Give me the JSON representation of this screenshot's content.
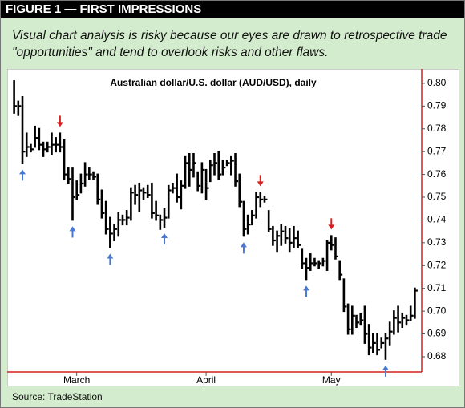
{
  "header": {
    "title": "FIGURE 1 — FIRST IMPRESSIONS"
  },
  "caption": "Visual chart analysis is risky because our eyes are drawn to retrospective trade \"opportunities\" and tend to overlook risks and other flaws.",
  "source": "Source: TradeStation",
  "chart_data": {
    "type": "ohlc",
    "title": "Australian dollar/U.S. dollar (AUD/USD), daily",
    "categories": [
      null,
      null,
      null,
      null,
      null,
      null,
      null,
      null,
      null,
      null,
      null,
      null,
      null,
      null,
      null,
      "March",
      null,
      null,
      null,
      null,
      null,
      null,
      null,
      null,
      null,
      null,
      null,
      null,
      null,
      null,
      null,
      null,
      null,
      null,
      null,
      null,
      null,
      null,
      null,
      null,
      null,
      null,
      null,
      null,
      null,
      null,
      "April",
      null,
      null,
      null,
      null,
      null,
      null,
      null,
      null,
      null,
      null,
      null,
      null,
      null,
      null,
      null,
      null,
      null,
      null,
      null,
      null,
      null,
      null,
      null,
      null,
      null,
      null,
      null,
      null,
      null,
      "May",
      null,
      null,
      null,
      null,
      null,
      null,
      null,
      null,
      null,
      null,
      null,
      null,
      null,
      null,
      null,
      null,
      null,
      null,
      null,
      null
    ],
    "high": [
      0.801,
      0.792,
      0.794,
      0.778,
      0.773,
      0.781,
      0.78,
      0.774,
      0.774,
      0.778,
      0.776,
      0.778,
      0.775,
      0.763,
      0.763,
      0.757,
      0.76,
      0.765,
      0.763,
      0.761,
      0.76,
      0.753,
      0.748,
      0.741,
      0.738,
      0.743,
      0.742,
      0.744,
      0.754,
      0.755,
      0.756,
      0.754,
      0.755,
      0.756,
      0.748,
      0.742,
      0.745,
      0.755,
      0.756,
      0.76,
      0.757,
      0.768,
      0.769,
      0.769,
      0.761,
      0.765,
      0.762,
      0.766,
      0.769,
      0.77,
      0.766,
      0.766,
      0.768,
      0.769,
      0.76,
      0.748,
      0.742,
      0.744,
      0.752,
      0.752,
      0.75,
      0.744,
      0.737,
      0.735,
      0.738,
      0.737,
      0.736,
      0.737,
      0.735,
      0.727,
      0.723,
      0.725,
      0.723,
      0.722,
      0.723,
      0.731,
      0.733,
      0.732,
      0.722,
      0.714,
      0.703,
      0.702,
      0.698,
      0.699,
      0.702,
      0.694,
      0.69,
      0.69,
      0.688,
      0.69,
      0.695,
      0.7,
      0.702,
      0.699,
      0.698,
      0.702,
      0.71
    ],
    "low": [
      0.787,
      0.786,
      0.765,
      0.768,
      0.77,
      0.772,
      0.771,
      0.768,
      0.77,
      0.769,
      0.77,
      0.77,
      0.758,
      0.756,
      0.74,
      0.749,
      0.752,
      0.755,
      0.758,
      0.758,
      0.747,
      0.741,
      0.734,
      0.728,
      0.731,
      0.733,
      0.738,
      0.738,
      0.74,
      0.747,
      0.744,
      0.749,
      0.75,
      0.741,
      0.74,
      0.736,
      0.737,
      0.741,
      0.752,
      0.748,
      0.745,
      0.754,
      0.755,
      0.759,
      0.753,
      0.752,
      0.749,
      0.757,
      0.76,
      0.758,
      0.76,
      0.764,
      0.76,
      0.755,
      0.746,
      0.733,
      0.734,
      0.738,
      0.741,
      0.746,
      0.748,
      0.735,
      0.729,
      0.726,
      0.729,
      0.73,
      0.726,
      0.728,
      0.728,
      0.719,
      0.714,
      0.718,
      0.72,
      0.719,
      0.72,
      0.718,
      0.727,
      0.723,
      0.714,
      0.7,
      0.69,
      0.69,
      0.693,
      0.694,
      0.686,
      0.681,
      0.682,
      0.681,
      0.684,
      0.679,
      0.685,
      0.69,
      0.691,
      0.693,
      0.694,
      0.696,
      0.697
    ],
    "close": [
      0.79,
      0.79,
      0.77,
      0.772,
      0.771,
      0.776,
      0.773,
      0.771,
      0.772,
      0.773,
      0.773,
      0.772,
      0.76,
      0.758,
      0.75,
      0.751,
      0.756,
      0.76,
      0.76,
      0.759,
      0.749,
      0.743,
      0.736,
      0.734,
      0.736,
      0.74,
      0.74,
      0.741,
      0.752,
      0.751,
      0.753,
      0.752,
      0.751,
      0.743,
      0.742,
      0.74,
      0.741,
      0.753,
      0.754,
      0.75,
      0.755,
      0.765,
      0.762,
      0.765,
      0.755,
      0.762,
      0.754,
      0.764,
      0.765,
      0.76,
      0.763,
      0.765,
      0.766,
      0.757,
      0.748,
      0.736,
      0.738,
      0.742,
      0.75,
      0.749,
      0.749,
      0.736,
      0.731,
      0.733,
      0.735,
      0.732,
      0.73,
      0.732,
      0.729,
      0.721,
      0.719,
      0.721,
      0.721,
      0.721,
      0.722,
      0.73,
      0.729,
      0.724,
      0.716,
      0.702,
      0.692,
      0.698,
      0.695,
      0.696,
      0.69,
      0.684,
      0.686,
      0.683,
      0.686,
      0.688,
      0.691,
      0.697,
      0.695,
      0.697,
      0.696,
      0.698,
      0.709
    ],
    "color": "#000000",
    "up_arrows": [
      2,
      14,
      23,
      36,
      55,
      70,
      89
    ],
    "up_arrow_color": "#4a78d0",
    "down_arrows": [
      11,
      59,
      76
    ],
    "down_arrow_color": "#d42020",
    "ylim": [
      0.6733,
      0.8063
    ],
    "yticks": [
      0.68,
      0.69,
      {
        "value": 0.7,
        "label": "0.70"
      },
      0.71,
      0.72,
      0.73,
      0.74,
      0.75,
      0.76,
      0.77,
      0.78,
      0.79,
      {
        "value": 0.8,
        "label": "0.80"
      }
    ]
  }
}
